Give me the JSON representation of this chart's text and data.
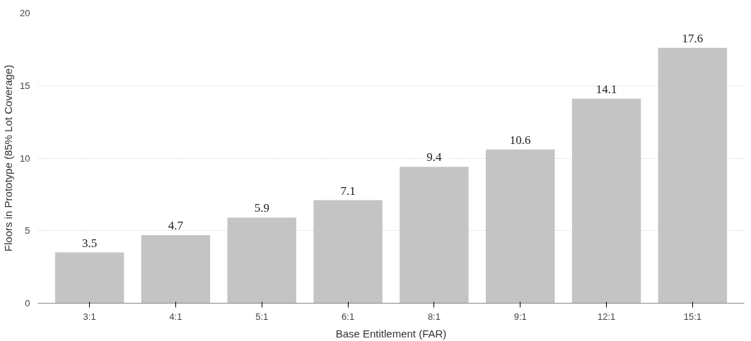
{
  "chart_data": {
    "type": "bar",
    "xlabel": "Base Entitlement (FAR)",
    "ylabel": "Floors in Prototype (85% Lot Coverage)",
    "categories": [
      "3:1",
      "4:1",
      "5:1",
      "6:1",
      "8:1",
      "9:1",
      "12:1",
      "15:1"
    ],
    "values": [
      3.5,
      4.7,
      5.9,
      7.1,
      9.4,
      10.6,
      14.1,
      17.6
    ],
    "color": "#c4c4c4",
    "ylim": [
      0,
      20
    ],
    "yticks": [
      0,
      5,
      10,
      15,
      20
    ],
    "grid": "y",
    "data_labels": true
  }
}
